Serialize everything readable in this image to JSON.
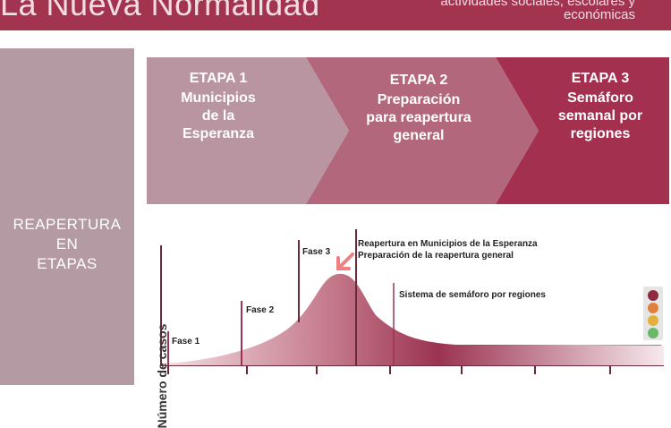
{
  "header": {
    "title": "La Nueva Normalidad",
    "subtitle": "actividades sociales, escolares y económicas"
  },
  "side_panel": {
    "label_lines": [
      "REAPERTURA",
      "EN",
      "ETAPAS"
    ]
  },
  "stages": [
    {
      "title": "ETAPA 1",
      "desc_lines": [
        "Municipios",
        "de la",
        "Esperanza"
      ],
      "color": "#b895a0"
    },
    {
      "title": "ETAPA 2",
      "desc_lines": [
        "Preparación",
        "para reapertura",
        "general"
      ],
      "color": "#b2677c"
    },
    {
      "title": "ETAPA 3",
      "desc_lines": [
        "Semáforo",
        "semanal por",
        "regiones"
      ],
      "color": "#a3304f"
    }
  ],
  "chart": {
    "ylabel": "Número de casos",
    "phases": [
      "Fase 1",
      "Fase 2",
      "Fase 3"
    ],
    "annotation_municipios": [
      "Reapertura en Municipios de la Esperanza",
      "Preparación de la reapertura general"
    ],
    "annotation_semaforo": "Sistema de semáforo por regiones",
    "arrow_color": "#f08080",
    "curve_color": "#9b3352",
    "semaforo_colors": [
      "#8e2a3f",
      "#e07f3c",
      "#e3b03c",
      "#6ab86a"
    ],
    "gradient_colors": [
      "#9b3352",
      "#c44a3e",
      "#e3c22a",
      "#5aae3c"
    ]
  }
}
